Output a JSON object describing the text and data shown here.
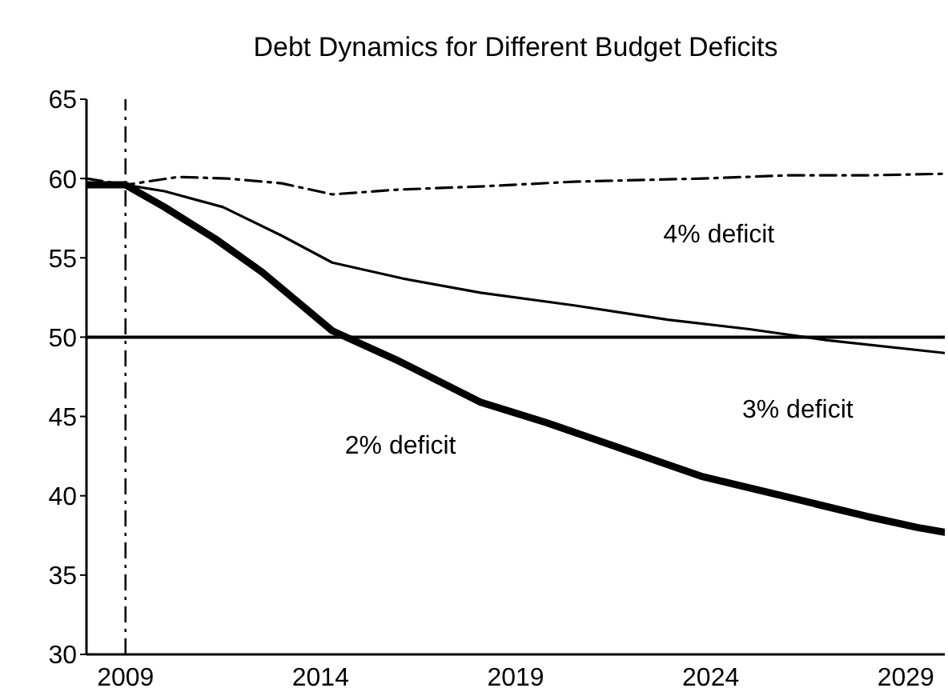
{
  "chart_data": {
    "type": "line",
    "title": "Debt Dynamics for Different Budget Deficits",
    "xlim": [
      2008,
      2030
    ],
    "xticks": [
      2009,
      2014,
      2019,
      2024,
      2029
    ],
    "ylim": [
      30,
      65
    ],
    "yticks": [
      30,
      35,
      40,
      45,
      50,
      55,
      60,
      65
    ],
    "marker": "none",
    "ref_lines": [
      {
        "axis": "y",
        "value": 50,
        "line_style": "solid",
        "color": "#000000"
      },
      {
        "axis": "x",
        "value": 2009,
        "line_style": "dashed",
        "color": "#000000"
      }
    ],
    "series": [
      {
        "name": "2% deficit",
        "color": "#000000",
        "line_style": "solid",
        "x": [
          2008,
          2009,
          2010,
          2011.3,
          2012.5,
          2014.3,
          2016,
          2018.1,
          2019.8,
          2021.8,
          2023.8,
          2026,
          2028,
          2029.3,
          2030
        ],
        "values": [
          59.6,
          59.6,
          58.2,
          56.2,
          54.1,
          50.4,
          48.5,
          45.9,
          44.6,
          42.9,
          41.2,
          39.9,
          38.7,
          38.0,
          37.7
        ]
      },
      {
        "name": "3% deficit",
        "color": "#000000",
        "line_style": "solid",
        "x": [
          2008,
          2009,
          2010,
          2011.5,
          2013,
          2014.3,
          2016.1,
          2018.1,
          2020.5,
          2022.9,
          2025,
          2027,
          2030
        ],
        "values": [
          59.6,
          59.6,
          59.2,
          58.2,
          56.4,
          54.7,
          53.7,
          52.8,
          52.0,
          51.1,
          50.5,
          49.8,
          49.0
        ]
      },
      {
        "name": "4% deficit",
        "color": "#000000",
        "line_style": "dashed",
        "x": [
          2008,
          2009,
          2010.35,
          2011.6,
          2013,
          2014.3,
          2016,
          2018.1,
          2020.5,
          2023.8,
          2026,
          2028,
          2030
        ],
        "values": [
          60.0,
          59.6,
          60.1,
          60.0,
          59.7,
          59.0,
          59.3,
          59.5,
          59.8,
          60.0,
          60.2,
          60.2,
          60.3
        ]
      }
    ]
  }
}
